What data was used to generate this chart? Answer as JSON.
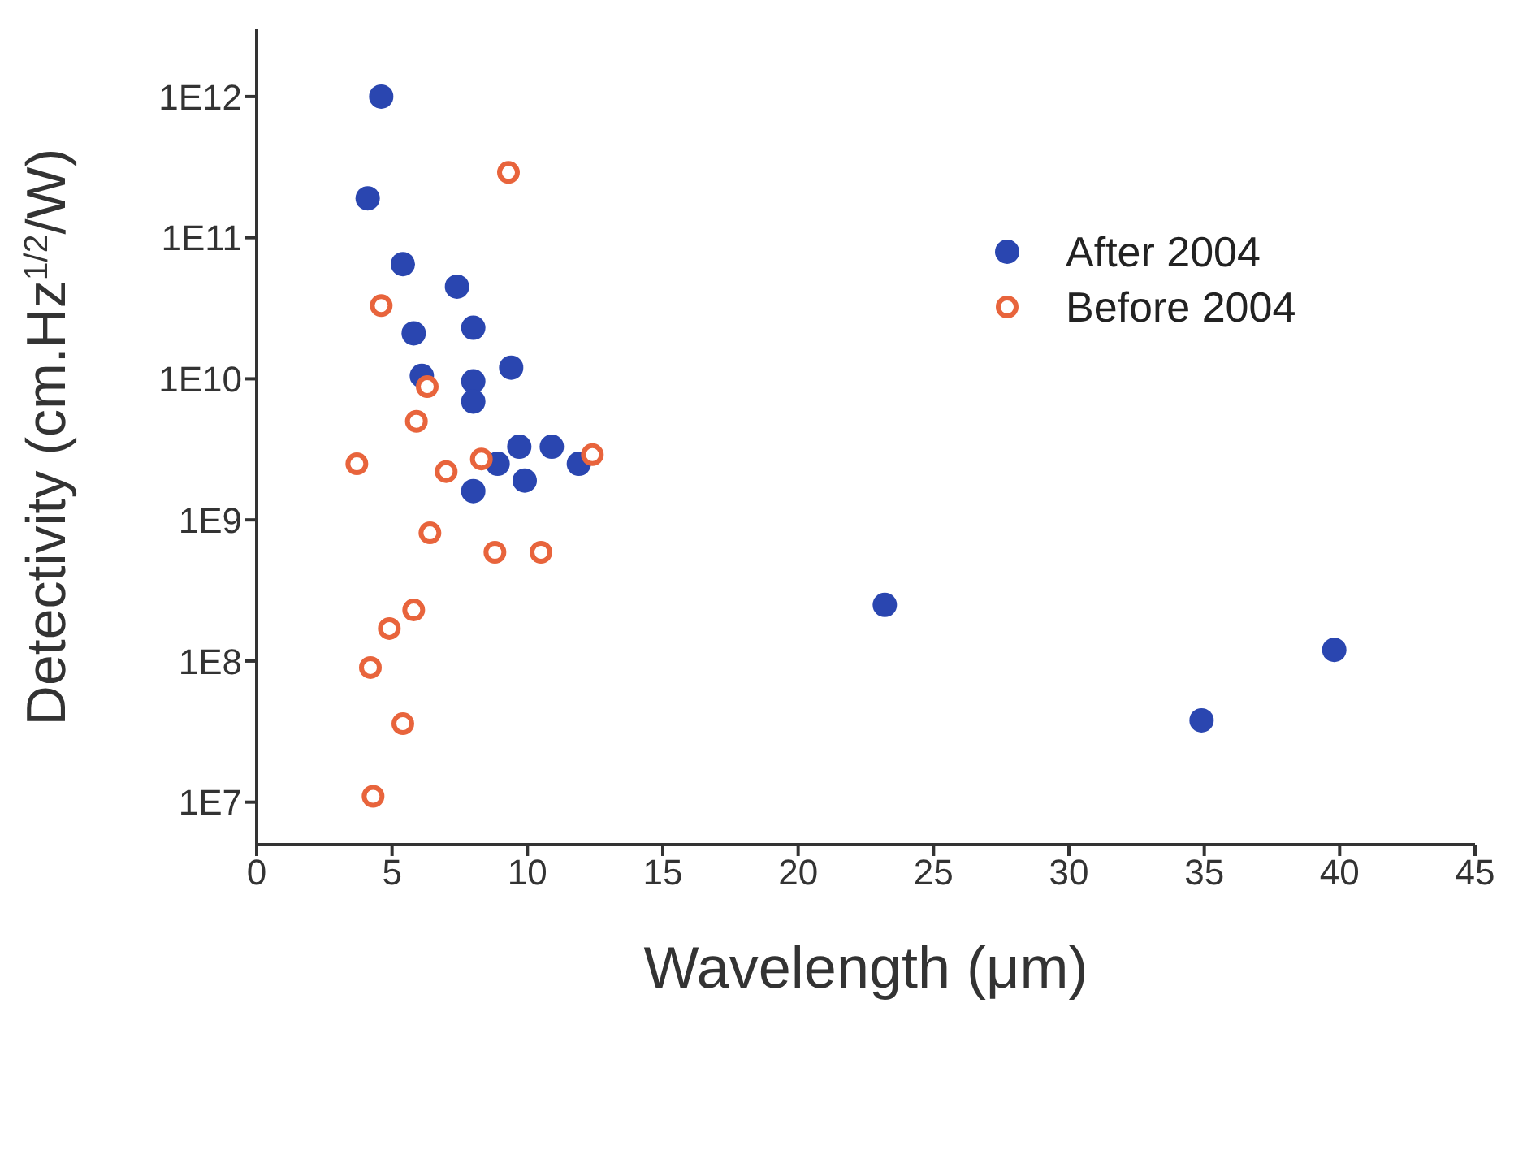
{
  "chart_data": {
    "type": "scatter",
    "xlabel": "Wavelength (μm)",
    "ylabel": "Detectivity (cm.Hz$^{1/2}$/W)",
    "xlim": [
      0,
      45
    ],
    "xticks": [
      0,
      5,
      10,
      15,
      20,
      25,
      30,
      35,
      40,
      45
    ],
    "ylim": [
      5000000,
      3000000000000
    ],
    "log": "y",
    "yticks": [
      {
        "value": 10000000,
        "label": "1E7"
      },
      {
        "value": 100000000,
        "label": "1E8"
      },
      {
        "value": 1000000000,
        "label": "1E9"
      },
      {
        "value": 10000000000,
        "label": "1E10"
      },
      {
        "value": 100000000000,
        "label": "1E11"
      },
      {
        "value": 1000000000000,
        "label": "1E12"
      }
    ],
    "grid": false,
    "legend": "top right",
    "marker": "circle",
    "series": [
      {
        "name": "After 2004",
        "color": "#2a46b0",
        "x": [
          4.6,
          4.1,
          5.4,
          7.4,
          5.8,
          8.0,
          9.4,
          6.1,
          8.0,
          8.0,
          9.7,
          10.9,
          8.9,
          11.9,
          8.0,
          9.9,
          23.2,
          34.9,
          39.8
        ],
        "values": [
          1000000000000,
          190000000000,
          65000000000,
          45000000000,
          21000000000,
          23000000000,
          12000000000,
          10500000000,
          9600000000,
          6900000000,
          3300000000,
          3300000000,
          2500000000,
          2500000000,
          1600000000,
          1900000000,
          250000000,
          38000000,
          120000000
        ]
      },
      {
        "name": "Before 2004",
        "color": "#e8643c",
        "x": [
          9.3,
          4.6,
          6.3,
          5.9,
          3.7,
          7.0,
          8.3,
          12.4,
          6.4,
          8.8,
          10.5,
          5.8,
          4.9,
          4.2,
          5.4,
          4.3
        ],
        "values": [
          290000000000,
          33000000000,
          8800000000,
          5000000000,
          2500000000,
          2200000000,
          2700000000,
          2900000000,
          810000000,
          590000000,
          590000000,
          230000000,
          170000000,
          90000000,
          36000000,
          11000000
        ]
      }
    ]
  }
}
